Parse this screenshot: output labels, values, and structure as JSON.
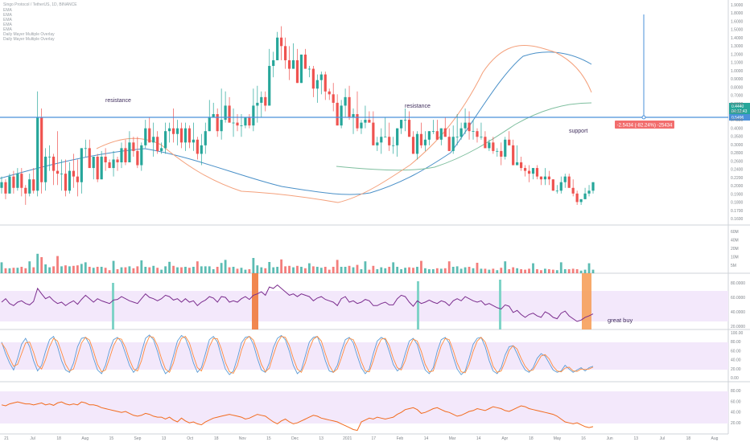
{
  "header": {
    "symbol_title": "Singo Protocol / TetherUS, 1D, BINANCE",
    "indicators": [
      "EMA",
      "EMA",
      "EMA",
      "EMA",
      "EMA",
      "Daily Mayer Multiple Overlay",
      "Daily Mayer Multiple Overlay"
    ]
  },
  "colors": {
    "up": "#26a69a",
    "down": "#ef5350",
    "ema_fast": "#f4a17c",
    "ema_mid": "#4a90c8",
    "ema_slow": "#7fbf9f",
    "support_line": "#4a90d9",
    "rsi_line": "#7b2d8e",
    "stoch_k": "#5b9bd5",
    "stoch_d": "#ff8a3d",
    "osc_line": "#f26b1d",
    "band_fill": "#f3e8fb",
    "highlight_orange": "#f07a3c",
    "highlight_teal": "#7fd3c7",
    "measure_badge": "#f26d6d"
  },
  "annotations": {
    "resistance_left": "resistance",
    "resistance_right": "resistance",
    "support": "support",
    "great_buy": "great buy",
    "measure": "-2.5434 (-82.24%) -25434"
  },
  "price_axis": {
    "current_price": "0.4440",
    "countdown": "04:12:43",
    "support_price": "0.5496"
  },
  "chart_data": {
    "type": "candlestick",
    "price_ticks": [
      "1.9000",
      "1.8000",
      "1.6000",
      "1.5000",
      "1.4000",
      "1.3000",
      "1.2000",
      "1.1000",
      "1.0000",
      "0.9000",
      "0.8000",
      "0.7000",
      "0.6000",
      "0.5000",
      "0.4500",
      "0.4000",
      "0.3500",
      "0.3000",
      "0.2800",
      "0.2600",
      "0.2400",
      "0.2200",
      "0.2000",
      "0.1900",
      "0.1800",
      "0.1700",
      "0.1600"
    ],
    "volume_ticks": [
      "60M",
      "40M",
      "20M",
      "10M",
      "5M"
    ],
    "rsi_ticks": [
      "80.0000",
      "60.0000",
      "40.0000",
      "20.0000"
    ],
    "stoch_ticks": [
      "100.00",
      "80.00",
      "60.00",
      "40.00",
      "20.00",
      "0.00"
    ],
    "osc_ticks": [
      "80.00",
      "60.00",
      "40.00",
      "20.00"
    ],
    "time_ticks": [
      "21",
      "Jul",
      "18",
      "Aug",
      "15",
      "Sep",
      "13",
      "Oct",
      "18",
      "Nov",
      "15",
      "Dec",
      "13",
      "2021",
      "17",
      "Feb",
      "14",
      "Mar",
      "14",
      "Apr",
      "18",
      "May",
      "16",
      "Jun",
      "13",
      "Jul",
      "18",
      "Aug"
    ],
    "candles": [
      [
        0.8,
        1.2,
        0.6,
        1.0
      ],
      [
        1.0,
        1.1,
        0.4,
        0.6
      ],
      [
        0.6,
        1.3,
        0.6,
        1.2
      ],
      [
        1.2,
        1.4,
        0.6,
        0.8
      ],
      [
        0.8,
        1.5,
        0.7,
        1.3
      ],
      [
        1.3,
        1.5,
        0.5,
        0.8
      ],
      [
        0.8,
        0.9,
        0.2,
        0.6
      ],
      [
        0.6,
        1.3,
        0.5,
        1.1
      ],
      [
        1.1,
        1.5,
        0.6,
        0.7
      ],
      [
        0.7,
        4.2,
        0.5,
        3.3
      ],
      [
        3.3,
        3.6,
        0.6,
        1.0
      ],
      [
        1.0,
        2.2,
        0.7,
        1.9
      ],
      [
        1.9,
        2.3,
        1.4,
        1.9
      ],
      [
        1.9,
        2.0,
        0.9,
        1.4
      ],
      [
        1.4,
        2.8,
        0.9,
        1.3
      ],
      [
        1.3,
        1.8,
        0.7,
        1.3
      ],
      [
        1.3,
        1.8,
        0.5,
        0.7
      ],
      [
        0.7,
        1.7,
        0.6,
        1.4
      ],
      [
        1.4,
        2.0,
        0.8,
        1.2
      ],
      [
        1.2,
        1.8,
        0.5,
        1.0
      ],
      [
        1.0,
        2.2,
        0.6,
        2.2
      ],
      [
        2.2,
        2.5,
        1.9,
        2.2
      ],
      [
        2.2,
        2.5,
        1.5,
        1.5
      ],
      [
        1.5,
        1.9,
        1.1,
        1.9
      ],
      [
        1.9,
        2.0,
        1.0,
        1.1
      ],
      [
        1.1,
        2.1,
        1.1,
        1.9
      ],
      [
        1.9,
        2.2,
        1.4,
        1.7
      ],
      [
        1.7,
        1.8,
        1.5,
        1.5
      ],
      [
        1.5,
        2.1,
        1.2,
        1.8
      ],
      [
        1.8,
        1.9,
        1.4,
        1.7
      ],
      [
        1.7,
        2.4,
        1.5,
        2.2
      ],
      [
        2.2,
        2.5,
        1.6,
        1.7
      ],
      [
        1.7,
        2.8,
        1.7,
        2.4
      ],
      [
        2.4,
        2.6,
        1.9,
        2.1
      ],
      [
        2.1,
        2.6,
        1.5,
        1.6
      ],
      [
        1.6,
        2.4,
        1.4,
        2.3
      ],
      [
        2.3,
        3.2,
        2.2,
        2.9
      ],
      [
        2.9,
        3.3,
        2.4,
        2.4
      ],
      [
        2.4,
        3.1,
        1.9,
        2.6
      ],
      [
        2.6,
        2.8,
        2.0,
        2.1
      ],
      [
        2.1,
        2.4,
        2.0,
        2.2
      ],
      [
        2.2,
        3.1,
        2.0,
        2.8
      ],
      [
        2.8,
        3.1,
        2.4,
        2.9
      ],
      [
        2.9,
        3.6,
        2.4,
        2.7
      ],
      [
        2.7,
        3.2,
        2.3,
        2.9
      ],
      [
        2.9,
        3.1,
        2.2,
        2.4
      ],
      [
        2.4,
        3.1,
        2.1,
        2.9
      ],
      [
        2.9,
        3.0,
        2.2,
        2.4
      ],
      [
        2.4,
        3.1,
        2.1,
        2.5
      ],
      [
        2.5,
        2.6,
        1.8,
        2.0
      ],
      [
        2.0,
        2.7,
        1.6,
        2.3
      ],
      [
        2.3,
        3.1,
        2.0,
        2.8
      ],
      [
        2.8,
        3.9,
        2.8,
        3.3
      ],
      [
        3.3,
        3.8,
        3.3,
        3.4
      ],
      [
        3.4,
        3.6,
        2.6,
        2.8
      ],
      [
        2.8,
        4.3,
        2.5,
        3.2
      ],
      [
        3.2,
        4.2,
        3.1,
        3.7
      ],
      [
        3.7,
        4.0,
        3.1,
        3.1
      ],
      [
        3.1,
        3.6,
        2.6,
        3.1
      ],
      [
        3.1,
        3.4,
        2.8,
        3.0
      ],
      [
        3.0,
        3.4,
        2.6,
        3.0
      ],
      [
        3.0,
        3.3,
        2.9,
        3.3
      ],
      [
        3.3,
        3.4,
        2.9,
        3.0
      ],
      [
        3.0,
        4.3,
        2.8,
        3.7
      ],
      [
        3.7,
        4.4,
        3.1,
        3.8
      ],
      [
        3.8,
        4.2,
        3.3,
        4.0
      ],
      [
        4.0,
        4.2,
        3.5,
        3.7
      ],
      [
        3.7,
        5.7,
        3.7,
        5.1
      ],
      [
        5.1,
        5.6,
        4.7,
        5.3
      ],
      [
        5.3,
        6.3,
        5.3,
        6.1
      ],
      [
        6.1,
        6.5,
        5.3,
        5.8
      ],
      [
        5.8,
        6.1,
        5.0,
        5.3
      ],
      [
        5.3,
        5.8,
        4.6,
        5.0
      ],
      [
        5.0,
        5.9,
        5.0,
        5.3
      ],
      [
        5.3,
        5.7,
        4.5,
        4.5
      ],
      [
        4.5,
        5.5,
        4.5,
        5.5
      ],
      [
        5.5,
        5.7,
        5.0,
        5.0
      ],
      [
        5.0,
        5.1,
        4.7,
        5.0
      ],
      [
        5.0,
        5.1,
        4.0,
        4.3
      ],
      [
        4.3,
        4.8,
        3.8,
        4.6
      ],
      [
        4.6,
        4.9,
        4.1,
        4.8
      ],
      [
        4.8,
        4.9,
        3.9,
        4.2
      ],
      [
        4.2,
        4.3,
        3.9,
        4.1
      ],
      [
        4.1,
        4.5,
        3.5,
        3.8
      ],
      [
        3.8,
        4.1,
        3.0,
        3.0
      ],
      [
        3.0,
        3.9,
        2.9,
        3.7
      ],
      [
        3.7,
        4.3,
        3.3,
        4.0
      ],
      [
        4.0,
        4.4,
        3.2,
        3.3
      ],
      [
        3.3,
        3.6,
        2.7,
        3.4
      ],
      [
        3.4,
        4.2,
        2.8,
        2.9
      ],
      [
        2.9,
        3.2,
        2.7,
        3.1
      ],
      [
        3.1,
        3.7,
        2.9,
        3.2
      ],
      [
        3.2,
        3.5,
        3.1,
        3.1
      ],
      [
        3.1,
        3.5,
        2.3,
        2.3
      ],
      [
        2.3,
        2.6,
        2.1,
        2.4
      ],
      [
        2.4,
        2.9,
        2.0,
        2.6
      ],
      [
        2.6,
        3.3,
        2.6,
        2.6
      ],
      [
        2.6,
        3.1,
        2.1,
        2.3
      ],
      [
        2.3,
        2.6,
        2.0,
        2.3
      ],
      [
        2.3,
        2.9,
        1.9,
        2.9
      ],
      [
        2.9,
        3.2,
        2.7,
        3.2
      ],
      [
        3.2,
        3.6,
        2.8,
        3.2
      ],
      [
        3.2,
        3.5,
        2.6,
        2.6
      ],
      [
        2.6,
        2.8,
        2.0,
        2.0
      ],
      [
        2.0,
        2.8,
        1.8,
        2.7
      ],
      [
        2.7,
        3.1,
        2.2,
        2.3
      ],
      [
        2.3,
        2.8,
        2.1,
        2.5
      ],
      [
        2.5,
        2.8,
        2.3,
        2.8
      ],
      [
        2.8,
        3.2,
        2.7,
        2.8
      ],
      [
        2.8,
        3.2,
        2.5,
        2.5
      ],
      [
        2.5,
        2.9,
        2.3,
        2.9
      ],
      [
        2.9,
        3.3,
        2.6,
        2.6
      ],
      [
        2.6,
        2.9,
        2.1,
        2.1
      ],
      [
        2.1,
        3.0,
        2.0,
        2.6
      ],
      [
        2.6,
        3.4,
        2.3,
        2.6
      ],
      [
        2.6,
        3.1,
        2.5,
        2.9
      ],
      [
        2.9,
        3.6,
        2.7,
        3.1
      ],
      [
        3.1,
        3.5,
        2.5,
        2.8
      ],
      [
        2.8,
        3.2,
        2.5,
        2.8
      ],
      [
        2.8,
        2.9,
        2.4,
        2.6
      ],
      [
        2.6,
        3.1,
        2.5,
        2.6
      ],
      [
        2.6,
        2.8,
        2.2,
        2.2
      ],
      [
        2.2,
        2.5,
        2.1,
        2.4
      ],
      [
        2.4,
        2.6,
        2.0,
        2.1
      ],
      [
        2.1,
        2.2,
        1.9,
        2.1
      ],
      [
        2.1,
        2.4,
        1.6,
        1.9
      ],
      [
        1.9,
        2.6,
        1.8,
        2.5
      ],
      [
        2.5,
        2.8,
        2.3,
        2.3
      ],
      [
        2.3,
        2.5,
        1.6,
        1.6
      ],
      [
        1.6,
        2.3,
        1.6,
        1.7
      ],
      [
        1.7,
        1.9,
        1.4,
        1.5
      ],
      [
        1.5,
        1.6,
        1.2,
        1.4
      ],
      [
        1.4,
        1.6,
        1.0,
        1.3
      ],
      [
        1.3,
        1.5,
        1.1,
        1.5
      ],
      [
        1.5,
        1.6,
        1.1,
        1.2
      ],
      [
        1.2,
        1.2,
        0.9,
        1.1
      ],
      [
        1.1,
        1.5,
        0.9,
        1.2
      ],
      [
        1.2,
        1.4,
        0.9,
        1.1
      ],
      [
        1.1,
        1.1,
        0.7,
        0.7
      ],
      [
        0.7,
        0.9,
        0.6,
        0.7
      ],
      [
        0.7,
        1.2,
        0.6,
        1.0
      ],
      [
        1.0,
        1.3,
        0.8,
        1.2
      ],
      [
        1.2,
        1.3,
        0.8,
        0.8
      ],
      [
        0.8,
        1.1,
        0.5,
        0.6
      ],
      [
        0.6,
        0.7,
        0.2,
        0.3
      ],
      [
        0.3,
        0.4,
        0.2,
        0.4
      ],
      [
        0.4,
        0.8,
        0.4,
        0.6
      ],
      [
        0.6,
        0.9,
        0.5,
        0.7
      ],
      [
        0.7,
        1.0,
        0.6,
        1.0
      ]
    ],
    "rsi_values": [
      50,
      55,
      48,
      45,
      50,
      52,
      48,
      46,
      51,
      70,
      62,
      55,
      58,
      52,
      48,
      50,
      45,
      49,
      52,
      47,
      54,
      60,
      55,
      50,
      55,
      52,
      50,
      48,
      53,
      54,
      58,
      55,
      52,
      50,
      48,
      55,
      62,
      57,
      55,
      52,
      55,
      60,
      58,
      53,
      55,
      50,
      55,
      50,
      52,
      45,
      50,
      53,
      58,
      56,
      50,
      58,
      57,
      50,
      52,
      50,
      55,
      58,
      54,
      60,
      62,
      65,
      60,
      72,
      70,
      75,
      70,
      65,
      60,
      62,
      58,
      62,
      60,
      58,
      52,
      56,
      58,
      54,
      52,
      50,
      45,
      55,
      58,
      50,
      52,
      48,
      50,
      54,
      52,
      45,
      45,
      48,
      50,
      46,
      46,
      55,
      60,
      58,
      50,
      44,
      52,
      48,
      50,
      53,
      50,
      48,
      52,
      50,
      45,
      52,
      55,
      52,
      58,
      55,
      52,
      50,
      52,
      46,
      48,
      45,
      42,
      40,
      46,
      44,
      35,
      38,
      32,
      28,
      32,
      34,
      30,
      28,
      36,
      33,
      28,
      26,
      34,
      37,
      30,
      26,
      22,
      24,
      28,
      30,
      33
    ],
    "stoch_k": [
      80,
      55,
      35,
      20,
      45,
      75,
      88,
      70,
      40,
      18,
      30,
      60,
      85,
      92,
      70,
      40,
      20,
      15,
      35,
      70,
      88,
      90,
      75,
      45,
      20,
      12,
      30,
      62,
      85,
      90,
      80,
      55,
      30,
      15,
      25,
      58,
      88,
      95,
      85,
      60,
      30,
      12,
      20,
      50,
      82,
      94,
      88,
      65,
      35,
      15,
      25,
      55,
      85,
      92,
      80,
      50,
      22,
      10,
      18,
      45,
      78,
      90,
      92,
      75,
      45,
      20,
      15,
      35,
      68,
      88,
      94,
      85,
      60,
      30,
      12,
      20,
      50,
      80,
      90,
      92,
      70,
      40,
      18,
      15,
      30,
      60,
      85,
      90,
      78,
      50,
      25,
      12,
      22,
      55,
      82,
      90,
      85,
      60,
      32,
      18,
      25,
      55,
      82,
      88,
      75,
      45,
      20,
      12,
      25,
      60,
      85,
      90,
      78,
      48,
      22,
      10,
      18,
      45,
      75,
      88,
      90,
      70,
      40,
      18,
      12,
      25,
      52,
      70,
      72,
      55,
      35,
      20,
      15,
      25,
      45,
      55,
      50,
      35,
      20,
      15,
      18,
      30,
      22,
      15,
      20,
      25,
      18,
      25,
      28
    ],
    "stoch_d": [
      78,
      65,
      45,
      28,
      32,
      55,
      78,
      80,
      58,
      30,
      22,
      42,
      70,
      88,
      82,
      58,
      32,
      18,
      22,
      50,
      78,
      90,
      84,
      60,
      32,
      16,
      20,
      45,
      72,
      88,
      86,
      68,
      42,
      22,
      18,
      40,
      72,
      92,
      90,
      72,
      45,
      22,
      15,
      35,
      68,
      88,
      92,
      78,
      50,
      25,
      18,
      40,
      70,
      88,
      87,
      65,
      36,
      16,
      13,
      30,
      62,
      85,
      92,
      84,
      60,
      32,
      16,
      24,
      52,
      78,
      92,
      90,
      72,
      45,
      22,
      15,
      35,
      65,
      86,
      92,
      82,
      55,
      30,
      15,
      22,
      45,
      72,
      88,
      85,
      65,
      38,
      18,
      16,
      40,
      68,
      86,
      88,
      72,
      45,
      25,
      20,
      40,
      70,
      86,
      82,
      60,
      32,
      16,
      18,
      45,
      72,
      88,
      85,
      62,
      35,
      16,
      14,
      32,
      60,
      82,
      90,
      80,
      55,
      28,
      15,
      18,
      38,
      62,
      72,
      65,
      45,
      28,
      18,
      20,
      35,
      50,
      53,
      44,
      28,
      18,
      16,
      24,
      26,
      18,
      17,
      22,
      21,
      22,
      26
    ],
    "osc_values": [
      58,
      56,
      60,
      62,
      64,
      62,
      60,
      60,
      58,
      60,
      62,
      58,
      60,
      57,
      62,
      64,
      60,
      58,
      60,
      58,
      64,
      62,
      58,
      58,
      56,
      52,
      50,
      48,
      46,
      44,
      42,
      44,
      40,
      36,
      34,
      36,
      40,
      38,
      34,
      32,
      32,
      28,
      32,
      26,
      22,
      30,
      24,
      20,
      22,
      18,
      16,
      22,
      26,
      30,
      32,
      34,
      36,
      38,
      36,
      34,
      32,
      28,
      30,
      34,
      38,
      36,
      34,
      28,
      22,
      18,
      24,
      28,
      22,
      18,
      20,
      24,
      28,
      32,
      36,
      34,
      30,
      28,
      26,
      24,
      22,
      18,
      14,
      10,
      6,
      4,
      22,
      26,
      30,
      28,
      32,
      30,
      28,
      30,
      32,
      38,
      42,
      48,
      50,
      52,
      48,
      40,
      42,
      46,
      50,
      52,
      48,
      44,
      42,
      38,
      34,
      36,
      40,
      44,
      46,
      50,
      48,
      46,
      50,
      54,
      52,
      50,
      46,
      44,
      48,
      52,
      56,
      54,
      50,
      48,
      46,
      44,
      42,
      40,
      38,
      34,
      28,
      22,
      20,
      18,
      20,
      16,
      12,
      10,
      12
    ]
  }
}
